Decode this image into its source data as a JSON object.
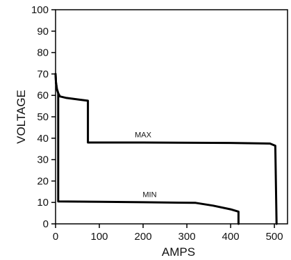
{
  "chart_data": {
    "type": "line",
    "title": "",
    "xlabel": "AMPS",
    "ylabel": "VOLTAGE",
    "xlim": [
      0,
      530
    ],
    "ylim": [
      0,
      100
    ],
    "x_ticks": [
      0,
      100,
      200,
      300,
      400,
      500
    ],
    "y_ticks": [
      0,
      10,
      20,
      30,
      40,
      50,
      60,
      70,
      80,
      90,
      100
    ],
    "grid": false,
    "legend": "none",
    "line_color": "#000000",
    "series": [
      {
        "name": "MAX",
        "points": [
          [
            0,
            70
          ],
          [
            1,
            66
          ],
          [
            3,
            63
          ],
          [
            6,
            61
          ],
          [
            10,
            59.5
          ],
          [
            25,
            58.8
          ],
          [
            55,
            58
          ],
          [
            74,
            57.5
          ],
          [
            74,
            38
          ],
          [
            200,
            38
          ],
          [
            400,
            37.8
          ],
          [
            490,
            37.5
          ],
          [
            502,
            36.5
          ],
          [
            505,
            0
          ]
        ]
      },
      {
        "name": "MIN",
        "points": [
          [
            0,
            70
          ],
          [
            1,
            66
          ],
          [
            3,
            63
          ],
          [
            6,
            61
          ],
          [
            6,
            10.5
          ],
          [
            100,
            10.3
          ],
          [
            200,
            10.1
          ],
          [
            320,
            9.8
          ],
          [
            360,
            8.5
          ],
          [
            400,
            6.8
          ],
          [
            418,
            5.7
          ],
          [
            418,
            0
          ]
        ]
      }
    ]
  }
}
